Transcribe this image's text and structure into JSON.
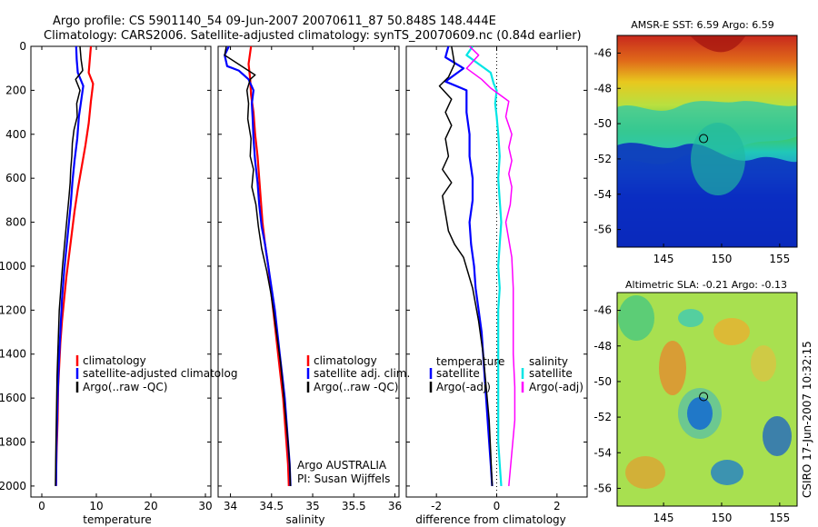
{
  "header": {
    "line1": "Argo profile: CS 5901140_54 09-Jun-2007 20070611_87 50.848S 148.444E",
    "line2": "Climatology: CARS2006. Satellite-adjusted climatology: synTS_20070609.nc (0.84d earlier)"
  },
  "colors": {
    "climatology": "#ff0000",
    "satellite": "#0000ff",
    "argo": "#000000",
    "sat_salinity": "#00e5e5",
    "argo_salinity_diff": "#ff00ff"
  },
  "chart_data": [
    {
      "type": "line",
      "id": "temperature",
      "xlabel": "temperature",
      "ylabel": "",
      "xlim": [
        -2,
        31
      ],
      "ylim": [
        0,
        2050
      ],
      "y_reversed": true,
      "xticks": [
        0,
        10,
        20,
        30
      ],
      "yticks": [
        0,
        200,
        400,
        600,
        800,
        1000,
        1200,
        1400,
        1600,
        1800,
        2000
      ],
      "legend": [
        "climatology",
        "satellite-adjusted climatolog",
        "Argo(..raw -QC)"
      ],
      "series": [
        {
          "name": "climatology",
          "color": "#ff0000",
          "width": 2.2,
          "points": [
            [
              9.0,
              0
            ],
            [
              8.8,
              60
            ],
            [
              8.6,
              120
            ],
            [
              9.4,
              170
            ],
            [
              9.0,
              250
            ],
            [
              8.6,
              350
            ],
            [
              8.0,
              450
            ],
            [
              7.3,
              550
            ],
            [
              6.6,
              650
            ],
            [
              6.0,
              750
            ],
            [
              5.5,
              850
            ],
            [
              5.0,
              950
            ],
            [
              4.5,
              1050
            ],
            [
              4.1,
              1150
            ],
            [
              3.7,
              1250
            ],
            [
              3.4,
              1350
            ],
            [
              3.2,
              1450
            ],
            [
              3.0,
              1550
            ],
            [
              2.9,
              1700
            ],
            [
              2.7,
              1850
            ],
            [
              2.6,
              2000
            ]
          ]
        },
        {
          "name": "satellite-adjusted climatolog",
          "color": "#0000ff",
          "width": 2.2,
          "points": [
            [
              6.3,
              0
            ],
            [
              6.4,
              60
            ],
            [
              6.6,
              120
            ],
            [
              7.6,
              180
            ],
            [
              7.2,
              250
            ],
            [
              6.8,
              320
            ],
            [
              6.5,
              420
            ],
            [
              6.0,
              520
            ],
            [
              5.6,
              620
            ],
            [
              5.3,
              720
            ],
            [
              4.9,
              820
            ],
            [
              4.5,
              920
            ],
            [
              4.1,
              1020
            ],
            [
              3.7,
              1150
            ],
            [
              3.4,
              1300
            ],
            [
              3.1,
              1450
            ],
            [
              2.9,
              1600
            ],
            [
              2.7,
              1800
            ],
            [
              2.6,
              2000
            ]
          ]
        },
        {
          "name": "Argo(..raw -QC)",
          "color": "#000000",
          "width": 1.5,
          "points": [
            [
              7.0,
              0
            ],
            [
              7.2,
              60
            ],
            [
              7.5,
              110
            ],
            [
              6.2,
              150
            ],
            [
              7.0,
              200
            ],
            [
              6.4,
              260
            ],
            [
              6.5,
              320
            ],
            [
              5.9,
              380
            ],
            [
              5.6,
              440
            ],
            [
              5.5,
              500
            ],
            [
              5.3,
              560
            ],
            [
              5.2,
              620
            ],
            [
              5.0,
              680
            ],
            [
              4.7,
              760
            ],
            [
              4.4,
              840
            ],
            [
              4.1,
              920
            ],
            [
              3.8,
              1000
            ],
            [
              3.5,
              1100
            ],
            [
              3.2,
              1200
            ],
            [
              3.0,
              1350
            ],
            [
              2.8,
              1500
            ],
            [
              2.7,
              1650
            ],
            [
              2.6,
              1800
            ],
            [
              2.5,
              2000
            ]
          ]
        }
      ]
    },
    {
      "type": "line",
      "id": "salinity",
      "xlabel": "salinity",
      "xlim": [
        33.85,
        36.05
      ],
      "ylim": [
        0,
        2050
      ],
      "y_reversed": true,
      "xticks": [
        34,
        34.5,
        35,
        35.5,
        36
      ],
      "xticklabels": [
        "34",
        "34.5",
        "35",
        "35.5",
        "36"
      ],
      "legend": [
        "climatology",
        "satellite adj. clim.",
        "Argo(..raw -QC)"
      ],
      "annotations": [
        "Argo AUSTRALIA",
        "PI: Susan Wijffels"
      ],
      "series": [
        {
          "name": "climatology",
          "color": "#ff0000",
          "width": 2.2,
          "points": [
            [
              34.25,
              0
            ],
            [
              34.22,
              80
            ],
            [
              34.24,
              150
            ],
            [
              34.25,
              220
            ],
            [
              34.28,
              300
            ],
            [
              34.3,
              400
            ],
            [
              34.33,
              500
            ],
            [
              34.35,
              600
            ],
            [
              34.37,
              700
            ],
            [
              34.39,
              800
            ],
            [
              34.42,
              900
            ],
            [
              34.46,
              1000
            ],
            [
              34.49,
              1100
            ],
            [
              34.52,
              1200
            ],
            [
              34.55,
              1300
            ],
            [
              34.58,
              1400
            ],
            [
              34.61,
              1500
            ],
            [
              34.64,
              1600
            ],
            [
              34.66,
              1700
            ],
            [
              34.68,
              1800
            ],
            [
              34.7,
              1900
            ],
            [
              34.71,
              2000
            ]
          ]
        },
        {
          "name": "satellite adj. clim.",
          "color": "#0000ff",
          "width": 2.2,
          "points": [
            [
              33.98,
              0
            ],
            [
              33.93,
              40
            ],
            [
              33.96,
              90
            ],
            [
              34.1,
              110
            ],
            [
              34.22,
              150
            ],
            [
              34.28,
              200
            ],
            [
              34.26,
              260
            ],
            [
              34.27,
              330
            ],
            [
              34.28,
              420
            ],
            [
              34.3,
              520
            ],
            [
              34.33,
              620
            ],
            [
              34.35,
              720
            ],
            [
              34.38,
              820
            ],
            [
              34.42,
              900
            ],
            [
              34.46,
              1000
            ],
            [
              34.5,
              1100
            ],
            [
              34.54,
              1200
            ],
            [
              34.57,
              1300
            ],
            [
              34.6,
              1400
            ],
            [
              34.63,
              1500
            ],
            [
              34.66,
              1600
            ],
            [
              34.68,
              1700
            ],
            [
              34.7,
              1800
            ],
            [
              34.72,
              1900
            ],
            [
              34.73,
              2000
            ]
          ]
        },
        {
          "name": "Argo(..raw -QC)",
          "color": "#000000",
          "width": 1.5,
          "points": [
            [
              33.95,
              0
            ],
            [
              33.93,
              40
            ],
            [
              34.3,
              130
            ],
            [
              34.24,
              150
            ],
            [
              34.2,
              200
            ],
            [
              34.22,
              260
            ],
            [
              34.21,
              330
            ],
            [
              34.25,
              420
            ],
            [
              34.24,
              500
            ],
            [
              34.28,
              560
            ],
            [
              34.26,
              640
            ],
            [
              34.31,
              720
            ],
            [
              34.34,
              820
            ],
            [
              34.38,
              920
            ],
            [
              34.44,
              1020
            ],
            [
              34.49,
              1120
            ],
            [
              34.53,
              1220
            ],
            [
              34.57,
              1330
            ],
            [
              34.61,
              1440
            ],
            [
              34.64,
              1560
            ],
            [
              34.67,
              1680
            ],
            [
              34.7,
              1800
            ],
            [
              34.72,
              1900
            ],
            [
              34.73,
              2000
            ]
          ]
        }
      ]
    },
    {
      "type": "line",
      "id": "difference",
      "xlabel": "difference from climatology",
      "xlim": [
        -3,
        3
      ],
      "ylim": [
        0,
        2050
      ],
      "y_reversed": true,
      "xticks": [
        -2,
        0,
        2
      ],
      "zero_line": "dotted",
      "legend_left_title": "temperature",
      "legend_right_title": "salinity",
      "legend": [
        "satellite",
        "Argo(-adj)",
        "satellite",
        "Argo(-adj)"
      ],
      "series": [
        {
          "name": "temperature satellite",
          "color": "#0000ff",
          "width": 2.2,
          "points": [
            [
              -1.6,
              0
            ],
            [
              -1.7,
              50
            ],
            [
              -1.1,
              100
            ],
            [
              -1.7,
              160
            ],
            [
              -1.0,
              200
            ],
            [
              -1.0,
              300
            ],
            [
              -0.9,
              400
            ],
            [
              -0.9,
              500
            ],
            [
              -0.8,
              600
            ],
            [
              -0.8,
              700
            ],
            [
              -0.9,
              800
            ],
            [
              -0.85,
              900
            ],
            [
              -0.75,
              1000
            ],
            [
              -0.7,
              1100
            ],
            [
              -0.6,
              1200
            ],
            [
              -0.5,
              1300
            ],
            [
              -0.4,
              1500
            ],
            [
              -0.3,
              1700
            ],
            [
              -0.2,
              1900
            ],
            [
              -0.15,
              2000
            ]
          ]
        },
        {
          "name": "temperature Argo(-adj)",
          "color": "#000000",
          "width": 1.5,
          "points": [
            [
              -1.5,
              0
            ],
            [
              -1.4,
              80
            ],
            [
              -1.6,
              140
            ],
            [
              -1.9,
              180
            ],
            [
              -1.5,
              240
            ],
            [
              -1.7,
              300
            ],
            [
              -1.5,
              360
            ],
            [
              -1.7,
              420
            ],
            [
              -1.6,
              500
            ],
            [
              -1.8,
              560
            ],
            [
              -1.5,
              620
            ],
            [
              -1.8,
              680
            ],
            [
              -1.7,
              760
            ],
            [
              -1.6,
              840
            ],
            [
              -1.4,
              900
            ],
            [
              -1.1,
              960
            ],
            [
              -0.8,
              1100
            ],
            [
              -0.6,
              1250
            ],
            [
              -0.45,
              1400
            ],
            [
              -0.35,
              1550
            ],
            [
              -0.25,
              1700
            ],
            [
              -0.2,
              1850
            ],
            [
              -0.15,
              2000
            ]
          ]
        },
        {
          "name": "salinity satellite",
          "color": "#00e5e5",
          "width": 2.2,
          "points": [
            [
              -0.8,
              0
            ],
            [
              -1.0,
              40
            ],
            [
              -0.6,
              80
            ],
            [
              -0.2,
              120
            ],
            [
              -0.1,
              170
            ],
            [
              0.0,
              200
            ],
            [
              -0.05,
              260
            ],
            [
              0.0,
              320
            ],
            [
              0.05,
              400
            ],
            [
              0.1,
              500
            ],
            [
              0.05,
              600
            ],
            [
              0.1,
              700
            ],
            [
              0.15,
              800
            ],
            [
              0.1,
              900
            ],
            [
              0.05,
              1000
            ],
            [
              0.1,
              1100
            ],
            [
              0.05,
              1200
            ],
            [
              0.05,
              1400
            ],
            [
              0.05,
              1600
            ],
            [
              0.05,
              1800
            ],
            [
              0.1,
              1900
            ],
            [
              0.15,
              2000
            ]
          ]
        },
        {
          "name": "salinity Argo(-adj)",
          "color": "#ff00ff",
          "width": 1.5,
          "points": [
            [
              -0.9,
              0
            ],
            [
              -0.6,
              40
            ],
            [
              -1.0,
              100
            ],
            [
              -0.5,
              150
            ],
            [
              -0.2,
              190
            ],
            [
              0.4,
              250
            ],
            [
              0.3,
              320
            ],
            [
              0.5,
              400
            ],
            [
              0.4,
              460
            ],
            [
              0.5,
              520
            ],
            [
              0.4,
              580
            ],
            [
              0.5,
              640
            ],
            [
              0.45,
              720
            ],
            [
              0.3,
              800
            ],
            [
              0.4,
              880
            ],
            [
              0.5,
              960
            ],
            [
              0.55,
              1100
            ],
            [
              0.55,
              1250
            ],
            [
              0.55,
              1400
            ],
            [
              0.6,
              1550
            ],
            [
              0.6,
              1700
            ],
            [
              0.5,
              1850
            ],
            [
              0.4,
              2000
            ]
          ]
        }
      ]
    },
    {
      "type": "heatmap",
      "id": "sst-map",
      "title": "AMSR-E SST: 6.59 Argo: 6.59",
      "xlim": [
        141,
        156.5
      ],
      "ylim": [
        -57,
        -45
      ],
      "xticks": [
        145,
        150,
        155
      ],
      "yticks": [
        -46,
        -48,
        -50,
        -52,
        -54,
        -56
      ],
      "argo_position": [
        148.444,
        -50.848
      ]
    },
    {
      "type": "heatmap",
      "id": "sla-map",
      "title": "Altimetric SLA: -0.21 Argo: -0.13",
      "xlim": [
        141,
        156.5
      ],
      "ylim": [
        -57,
        -45
      ],
      "xticks": [
        145,
        150,
        155
      ],
      "yticks": [
        -46,
        -48,
        -50,
        -52,
        -54,
        -56
      ],
      "argo_position": [
        148.444,
        -50.848
      ]
    }
  ],
  "footer": {
    "vertical_text": "CSIRO 17-Jun-2007 10:32:15"
  }
}
